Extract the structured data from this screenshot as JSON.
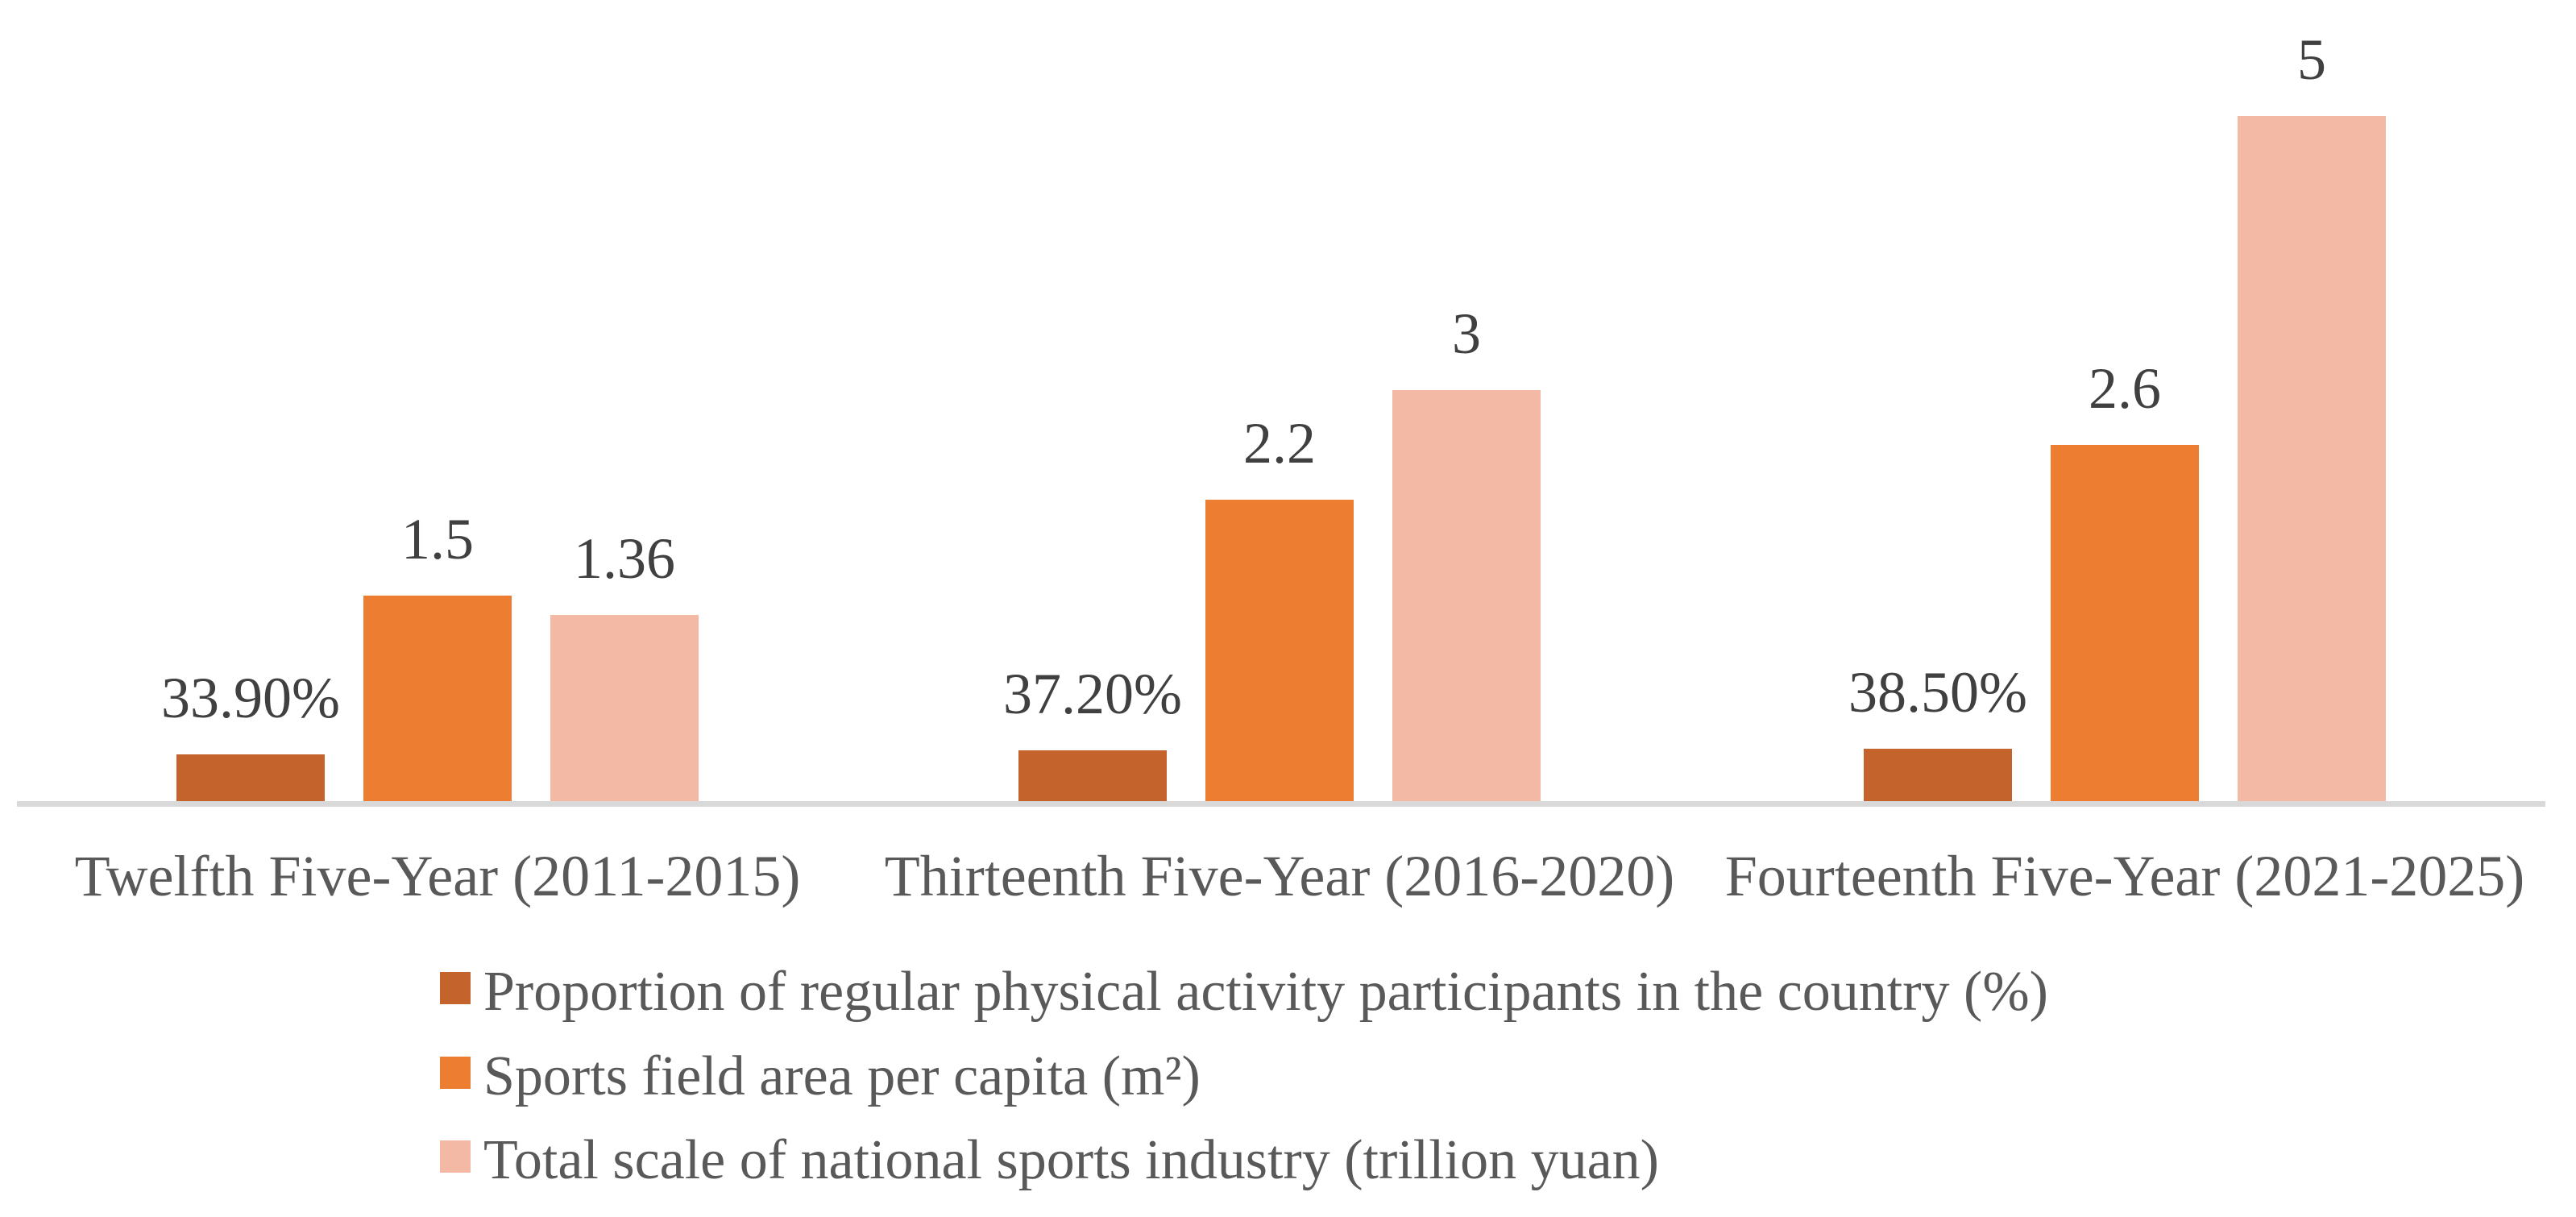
{
  "chart_data": {
    "type": "bar",
    "title": "",
    "xlabel": "",
    "ylabel": "",
    "categories": [
      "Twelfth Five-Year (2011-2015)",
      "Thirteenth Five-Year (2016-2020)",
      "Fourteenth Five-Year (2021-2025)"
    ],
    "series": [
      {
        "name": "Proportion of regular physical activity participants in the country (%)",
        "color": "#C4632B",
        "values": [
          33.9,
          37.2,
          38.5
        ],
        "value_labels": [
          "33.90%",
          "37.20%",
          "38.50%"
        ],
        "unit_scale": 0.01
      },
      {
        "name": "Sports field area per capita (m²)",
        "color": "#ED7D31",
        "values": [
          1.5,
          2.2,
          2.6
        ],
        "value_labels": [
          "1.5",
          "2.2",
          "2.6"
        ],
        "unit_scale": 1
      },
      {
        "name": "Total scale of national sports industry (trillion yuan)",
        "color": "#F4B9A5",
        "values": [
          1.36,
          3,
          5
        ],
        "value_labels": [
          "1.36",
          "3",
          "5"
        ],
        "unit_scale": 1
      }
    ],
    "ylim": [
      0,
      5.3
    ],
    "grid": false,
    "axis_line_color": "#D9D9D9",
    "value_label_color": "#404040",
    "category_label_color": "#595959",
    "legend_text_color": "#595959",
    "legend_position": "bottom-left"
  }
}
